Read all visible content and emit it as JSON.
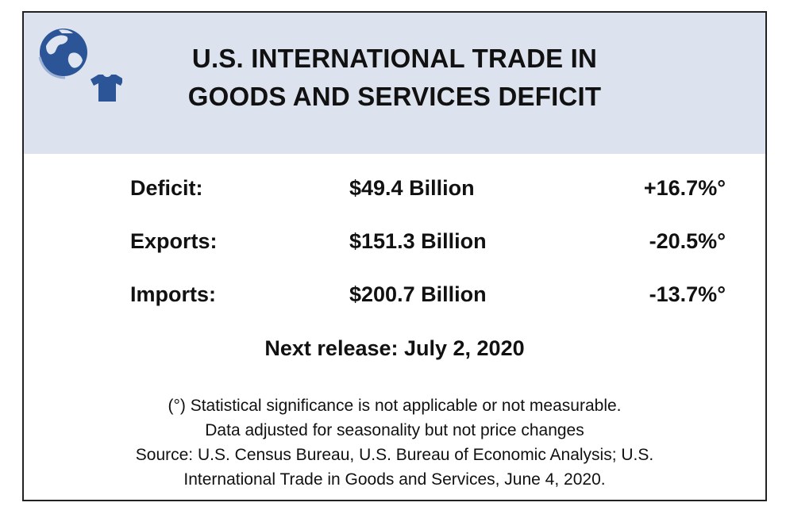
{
  "header": {
    "title_line1": "U.S. INTERNATIONAL TRADE IN",
    "title_line2": "GOODS AND SERVICES DEFICIT",
    "icons": [
      "globe-icon",
      "tshirt-icon"
    ],
    "background_color": "#dce3ee",
    "icon_color": "#2b5597"
  },
  "rows": [
    {
      "label": "Deficit:",
      "value": "$49.4 Billion",
      "change": "+16.7%°"
    },
    {
      "label": "Exports:",
      "value": "$151.3 Billion",
      "change": "-20.5%°"
    },
    {
      "label": "Imports:",
      "value": "$200.7 Billion",
      "change": "-13.7%°"
    }
  ],
  "next_release": "Next release: July 2, 2020",
  "notes": {
    "line1": "(°) Statistical significance is not applicable or not measurable.",
    "line2": "Data adjusted for seasonality but not price changes",
    "line3": "Source: U.S. Census Bureau, U.S. Bureau of Economic Analysis; U.S.",
    "line4": "International Trade in Goods and Services, June  4, 2020."
  }
}
